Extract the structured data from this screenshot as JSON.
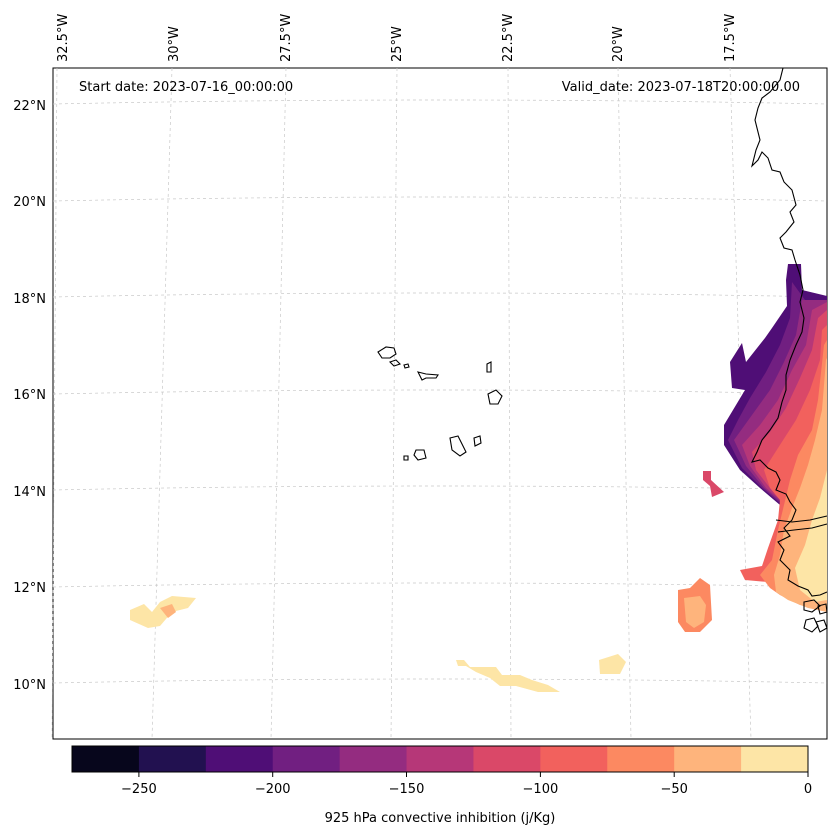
{
  "header": {
    "start_date": "Start date: 2023-07-16_00:00:00",
    "valid_date": "Valid_date: 2023-07-18T20:00:00.00"
  },
  "longitude_labels": [
    "32.5°W",
    "30°W",
    "27.5°W",
    "25°W",
    "22.5°W",
    "20°W",
    "17.5°W"
  ],
  "latitude_labels": [
    "22°N",
    "20°N",
    "18°N",
    "16°N",
    "14°N",
    "12°N",
    "10°N"
  ],
  "colorbar": {
    "label": "925 hPa convective inhibition (j/Kg)",
    "ticks": [
      "−250",
      "−200",
      "−150",
      "−100",
      "−50",
      "0"
    ],
    "colors": [
      "#07061c",
      "#221150",
      "#4f0e76",
      "#711f81",
      "#942c80",
      "#b63778",
      "#da4868",
      "#f2615d",
      "#fc8961",
      "#feb47c",
      "#fde5a6"
    ]
  }
}
